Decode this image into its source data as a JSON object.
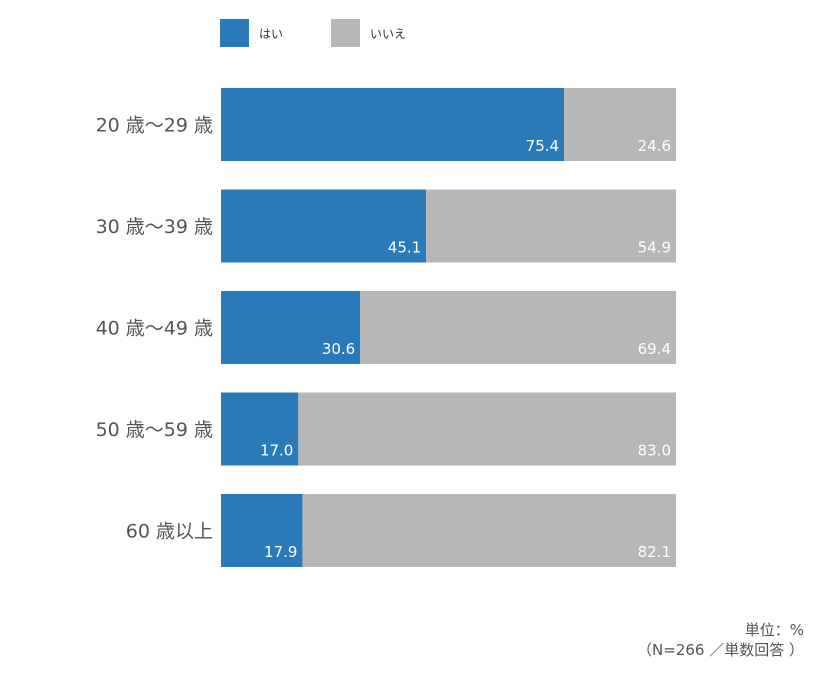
{
  "chart_data": {
    "type": "bar",
    "orientation": "horizontal",
    "stacked": true,
    "categories": [
      "20 歳〜29 歳",
      "30 歳〜39 歳",
      "40 歳〜49 歳",
      "50 歳〜59 歳",
      "60 歳以上"
    ],
    "series": [
      {
        "name": "はい",
        "values": [
          75.4,
          45.1,
          30.6,
          17.0,
          17.9
        ],
        "color": "#2a7ab9"
      },
      {
        "name": "いいえ",
        "values": [
          24.6,
          54.9,
          69.4,
          83.0,
          82.1
        ],
        "color": "#b7b7b7"
      }
    ],
    "xlim": [
      0,
      100
    ],
    "grid": false,
    "legend_position": "top-left",
    "data_label_color": "#ffffff"
  },
  "footnote": {
    "line1": "単位：%",
    "line2": "（N=266 ／単数回答 ）"
  }
}
